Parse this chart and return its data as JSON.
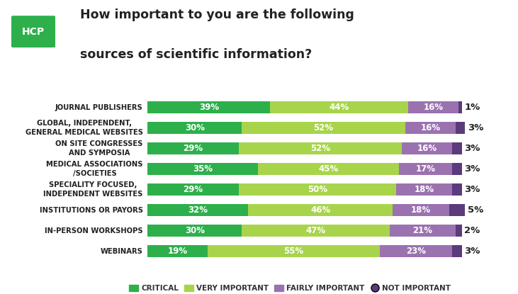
{
  "title_line1": "How important to you are the following",
  "title_line2": "sources of scientific information?",
  "hcp_label": "HCP",
  "categories": [
    "JOURNAL PUBLISHERS",
    "GLOBAL, INDEPENDENT,\nGENERAL MEDICAL WEBSITES",
    "ON SITE CONGRESSES\nAND SYMPOSIA",
    "MEDICAL ASSOCIATIONS\n/SOCIETIES",
    "SPECIALITY FOCUSED,\nINDEPENDENT WEBSITES",
    "INSTITUTIONS OR PAYORS",
    "IN-PERSON WORKSHOPS",
    "WEBINARS"
  ],
  "critical": [
    39,
    30,
    29,
    35,
    29,
    32,
    30,
    19
  ],
  "very_important": [
    44,
    52,
    52,
    45,
    50,
    46,
    47,
    55
  ],
  "fairly_important": [
    16,
    16,
    16,
    17,
    18,
    18,
    21,
    23
  ],
  "not_important": [
    1,
    3,
    3,
    3,
    3,
    5,
    2,
    3
  ],
  "color_critical": "#2db04b",
  "color_very_important": "#a8d44c",
  "color_fairly_important": "#9b72b0",
  "color_not_important": "#5b3a7e",
  "color_hcp_bg": "#2db04b",
  "legend_labels": [
    "CRITICAL",
    "VERY IMPORTANT",
    "FAIRLY IMPORTANT",
    "NOT IMPORTANT"
  ],
  "background_color": "#ffffff",
  "bar_height": 0.58,
  "title_fontsize": 12.5,
  "label_fontsize": 7.2,
  "bar_text_fontsize": 8.5,
  "outside_text_fontsize": 9.5
}
